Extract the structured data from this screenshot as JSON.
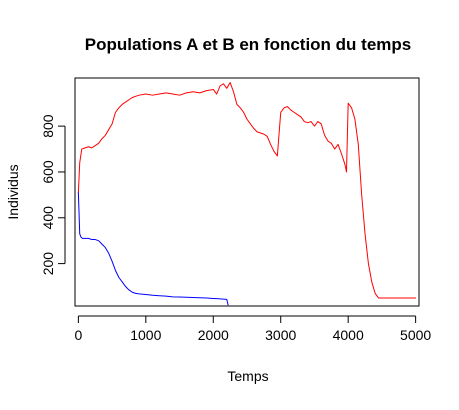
{
  "chart_data": {
    "type": "line",
    "title": "Populations A et B en fonction du temps",
    "xlabel": "Temps",
    "ylabel": "Individus",
    "xlim": [
      -50,
      5050
    ],
    "ylim": [
      15,
      1010
    ],
    "xticks": [
      0,
      1000,
      2000,
      3000,
      4000,
      5000
    ],
    "yticks": [
      200,
      400,
      600,
      800
    ],
    "xtick_labels": [
      "0",
      "1000",
      "2000",
      "3000",
      "4000",
      "5000"
    ],
    "ytick_labels": [
      "200",
      "400",
      "600",
      "800"
    ],
    "grid": false,
    "legend": "none",
    "series": [
      {
        "color": "#ff0000",
        "x": [
          0,
          20,
          50,
          100,
          150,
          200,
          250,
          300,
          350,
          400,
          450,
          500,
          550,
          600,
          650,
          700,
          750,
          800,
          850,
          900,
          1000,
          1100,
          1200,
          1300,
          1400,
          1500,
          1600,
          1700,
          1800,
          1900,
          2000,
          2050,
          2100,
          2150,
          2200,
          2250,
          2300,
          2350,
          2400,
          2450,
          2500,
          2550,
          2600,
          2650,
          2700,
          2750,
          2800,
          2850,
          2900,
          2950,
          3000,
          3050,
          3100,
          3150,
          3200,
          3250,
          3300,
          3350,
          3400,
          3450,
          3500,
          3550,
          3600,
          3650,
          3700,
          3750,
          3800,
          3850,
          3900,
          3950,
          3975,
          4000,
          4050,
          4100,
          4150,
          4200,
          4250,
          4300,
          4350,
          4400,
          4450,
          4500,
          4600,
          4700,
          4800,
          4900,
          5000
        ],
        "y": [
          510,
          640,
          700,
          705,
          710,
          705,
          715,
          725,
          745,
          760,
          785,
          810,
          860,
          880,
          895,
          905,
          915,
          925,
          930,
          935,
          940,
          935,
          940,
          945,
          940,
          935,
          945,
          950,
          945,
          955,
          960,
          940,
          975,
          985,
          965,
          990,
          950,
          895,
          880,
          860,
          830,
          810,
          790,
          775,
          770,
          765,
          755,
          720,
          690,
          670,
          860,
          880,
          885,
          870,
          860,
          850,
          840,
          820,
          815,
          820,
          800,
          820,
          810,
          760,
          735,
          725,
          700,
          720,
          680,
          635,
          600,
          900,
          880,
          830,
          720,
          500,
          330,
          200,
          120,
          70,
          50,
          50,
          50,
          50,
          50,
          50,
          50
        ]
      },
      {
        "color": "#0000ff",
        "x": [
          0,
          10,
          20,
          40,
          60,
          100,
          150,
          200,
          250,
          300,
          350,
          400,
          450,
          500,
          550,
          600,
          650,
          700,
          750,
          800,
          850,
          900,
          1000,
          1100,
          1200,
          1300,
          1400,
          1500,
          1600,
          1700,
          1800,
          1900,
          2000,
          2050,
          2100,
          2150,
          2200,
          2220
        ],
        "y": [
          510,
          420,
          330,
          315,
          310,
          310,
          310,
          305,
          305,
          300,
          285,
          270,
          245,
          210,
          170,
          140,
          120,
          100,
          85,
          75,
          70,
          68,
          65,
          62,
          60,
          58,
          55,
          54,
          53,
          52,
          51,
          50,
          48,
          47,
          46,
          45,
          44,
          20
        ]
      }
    ]
  }
}
